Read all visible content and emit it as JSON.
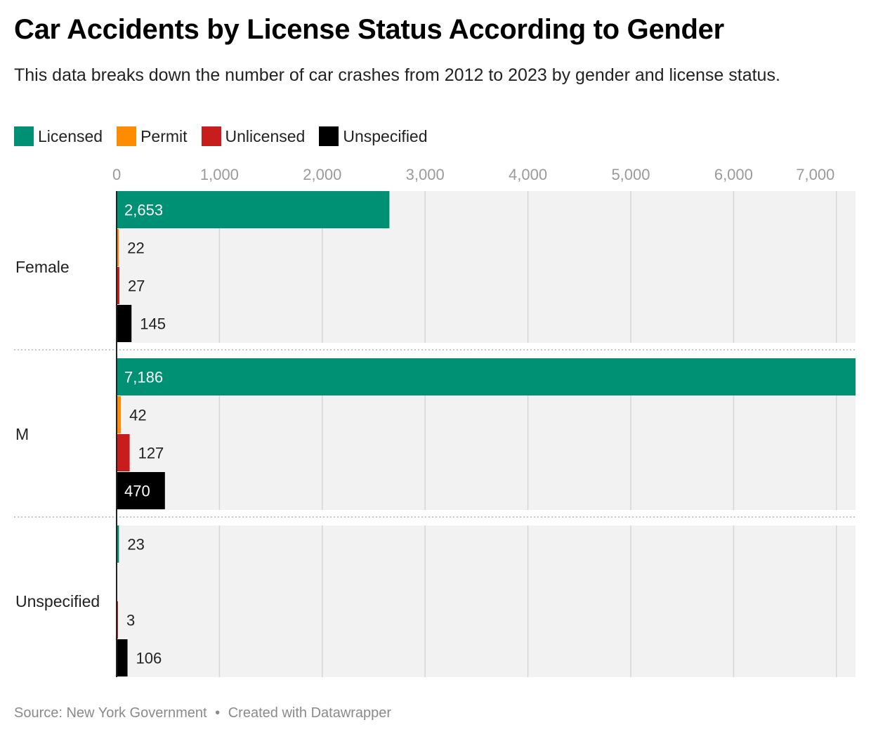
{
  "title": "Car Accidents by License Status According to Gender",
  "subtitle": "This data breaks down the number of car crashes from 2012 to 2023 by gender and license status.",
  "footer": {
    "source": "Source: New York Government",
    "separator": "•",
    "credit": "Created with Datawrapper"
  },
  "chart_data": {
    "type": "bar",
    "orientation": "horizontal",
    "categories": [
      "Female",
      "M",
      "Unspecified"
    ],
    "series": [
      {
        "name": "Licensed",
        "color": "#009175",
        "values": [
          2653,
          7186,
          23
        ]
      },
      {
        "name": "Permit",
        "color": "#ff8c00",
        "values": [
          22,
          42,
          null
        ]
      },
      {
        "name": "Unlicensed",
        "color": "#c71e1d",
        "values": [
          27,
          127,
          3
        ]
      },
      {
        "name": "Unspecified",
        "color": "#000000",
        "values": [
          145,
          470,
          106
        ]
      }
    ],
    "xticks": [
      0,
      1000,
      2000,
      3000,
      4000,
      5000,
      6000,
      7000
    ],
    "xlim": [
      0,
      7186
    ],
    "legend_position": "top-left",
    "grid": true
  }
}
